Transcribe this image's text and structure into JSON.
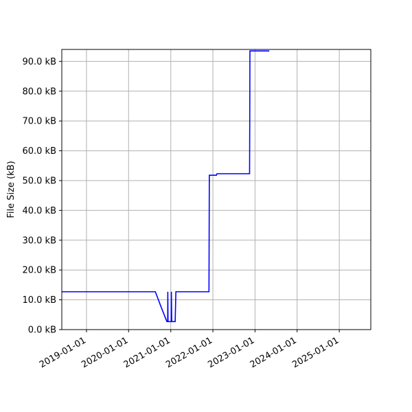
{
  "chart_data": {
    "type": "line",
    "ylabel": "File Size (kB)",
    "xlabel": "",
    "grid": true,
    "xlim": [
      "2018-06-01",
      "2025-10-01"
    ],
    "ylim": [
      0,
      94
    ],
    "x_ticks": [
      "2019-01-01",
      "2020-01-01",
      "2021-01-01",
      "2022-01-01",
      "2023-01-01",
      "2024-01-01",
      "2025-01-01"
    ],
    "y_ticks": [
      0,
      10,
      20,
      30,
      40,
      50,
      60,
      70,
      80,
      90
    ],
    "y_tick_labels": [
      "0.0 kB",
      "10.0 kB",
      "20.0 kB",
      "30.0 kB",
      "40.0 kB",
      "50.0 kB",
      "60.0 kB",
      "70.0 kB",
      "80.0 kB",
      "90.0 kB"
    ],
    "series": [
      {
        "color": "#0000ff",
        "points": [
          {
            "date": "2018-06-01",
            "value": 12.7
          },
          {
            "date": "2020-08-20",
            "value": 12.7
          },
          {
            "date": "2020-10-05",
            "value": 8.0
          },
          {
            "date": "2020-11-28",
            "value": 2.7
          },
          {
            "date": "2020-12-05",
            "value": 2.7
          },
          {
            "date": "2020-12-06",
            "value": 12.7
          },
          {
            "date": "2020-12-08",
            "value": 2.7
          },
          {
            "date": "2021-01-05",
            "value": 2.7
          },
          {
            "date": "2021-01-06",
            "value": 12.7
          },
          {
            "date": "2021-01-09",
            "value": 2.7
          },
          {
            "date": "2021-02-08",
            "value": 2.7
          },
          {
            "date": "2021-02-14",
            "value": 12.7
          },
          {
            "date": "2021-11-28",
            "value": 12.7
          },
          {
            "date": "2021-12-01",
            "value": 51.8
          },
          {
            "date": "2022-02-01",
            "value": 51.8
          },
          {
            "date": "2022-02-05",
            "value": 52.3
          },
          {
            "date": "2022-11-15",
            "value": 52.3
          },
          {
            "date": "2022-11-17",
            "value": 76.0
          },
          {
            "date": "2022-11-18",
            "value": 93.5
          },
          {
            "date": "2023-05-05",
            "value": 93.5
          }
        ]
      }
    ]
  }
}
